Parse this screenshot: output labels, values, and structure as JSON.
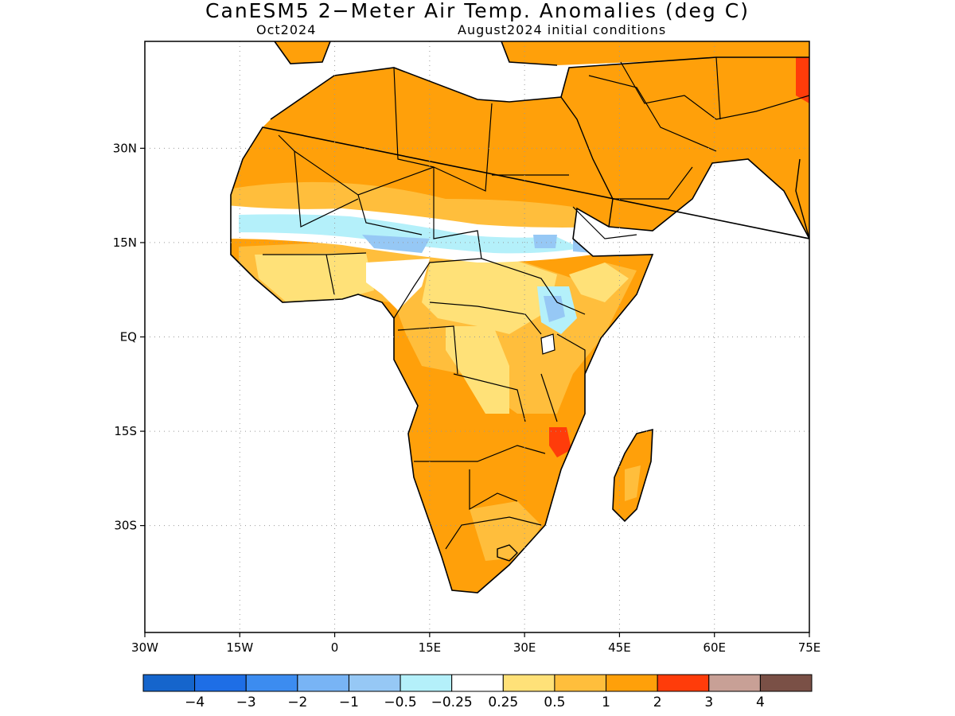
{
  "title": "CanESM5 2−Meter Air Temp. Anomalies (deg C)",
  "subtitle_left": "Oct2024",
  "subtitle_right": "August2024 initial conditions",
  "map": {
    "projection": "cylindrical-equidistant",
    "lon_range": [
      -30,
      75
    ],
    "lat_range": [
      -47,
      47
    ],
    "grid": "dotted"
  },
  "lon_ticks": [
    {
      "value": -30,
      "label": "30W"
    },
    {
      "value": -15,
      "label": "15W"
    },
    {
      "value": 0,
      "label": "0"
    },
    {
      "value": 15,
      "label": "15E"
    },
    {
      "value": 30,
      "label": "30E"
    },
    {
      "value": 45,
      "label": "45E"
    },
    {
      "value": 60,
      "label": "60E"
    },
    {
      "value": 75,
      "label": "75E"
    }
  ],
  "lat_ticks": [
    {
      "value": 30,
      "label": "30N"
    },
    {
      "value": 15,
      "label": "15N"
    },
    {
      "value": 0,
      "label": "EQ"
    },
    {
      "value": -15,
      "label": "15S"
    },
    {
      "value": -30,
      "label": "30S"
    }
  ],
  "colorbar": {
    "colors": [
      "#1565cc",
      "#1e6ee6",
      "#3c8cf0",
      "#78b4f5",
      "#96c8f5",
      "#b4f0fa",
      "#ffffff",
      "#ffe178",
      "#ffbe3c",
      "#ffa00a",
      "#ff3c0a",
      "#c8a096",
      "#7a5046"
    ],
    "labels": [
      "−4",
      "−3",
      "−2",
      "−1",
      "−0.5",
      "−0.25",
      "0.25",
      "0.5",
      "1",
      "2",
      "3",
      "4"
    ]
  }
}
